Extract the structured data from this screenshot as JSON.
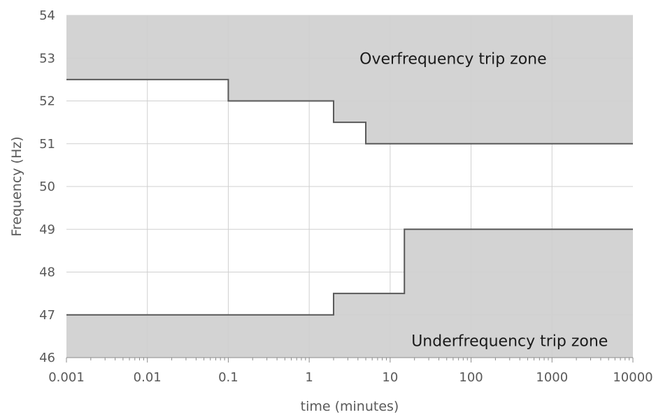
{
  "chart_data": {
    "type": "line",
    "xlabel": "time (minutes)",
    "ylabel": "Frequency (Hz)",
    "x_scale": "log",
    "xlim": [
      0.001,
      10000
    ],
    "ylim": [
      46,
      54
    ],
    "x_ticks": [
      0.001,
      0.01,
      0.1,
      1,
      10,
      100,
      1000,
      10000
    ],
    "x_tick_labels": [
      "0.001",
      "0.01",
      "0.1",
      "1",
      "10",
      "100",
      "1000",
      "10000"
    ],
    "y_ticks": [
      46,
      47,
      48,
      49,
      50,
      51,
      52,
      53,
      54
    ],
    "y_tick_labels": [
      "46",
      "47",
      "48",
      "49",
      "50",
      "51",
      "52",
      "53",
      "54"
    ],
    "grid": true,
    "series": [
      {
        "x": [
          0.001,
          0.1,
          0.1,
          2,
          2,
          5,
          5,
          10000
        ],
        "y": [
          52.5,
          52.5,
          52,
          52,
          51.5,
          51.5,
          51,
          51
        ]
      },
      {
        "x": [
          0.001,
          2,
          2,
          15,
          15,
          10000
        ],
        "y": [
          47,
          47,
          47.5,
          47.5,
          49,
          49
        ]
      }
    ],
    "annotations": [
      {
        "text": "Overfrequency trip zone",
        "x": 60,
        "y": 53.0
      },
      {
        "text": "Underfrequency trip zone",
        "x": 300,
        "y": 46.4
      }
    ],
    "colors": {
      "zone_fill": "#d3d3d3",
      "line": "#595959",
      "grid": "#d0d0d0",
      "axis_text": "#595959"
    }
  }
}
